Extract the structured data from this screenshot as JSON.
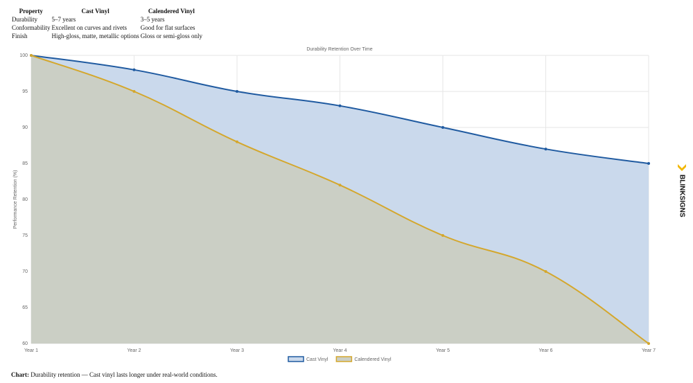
{
  "table": {
    "header": [
      "Property",
      "Cast Vinyl",
      "Calendered Vinyl"
    ],
    "rows": [
      [
        "Durability",
        "5–7 years",
        "3–5 years"
      ],
      [
        "Conformability",
        "Excellent on curves and rivets",
        "Good for flat surfaces"
      ],
      [
        "Finish",
        "High-gloss, matte, metallic options",
        "Gloss or semi-gloss only"
      ]
    ]
  },
  "chart_data": {
    "type": "line",
    "title": "Durability Retention Over Time",
    "y_label": "Performance Retention (%)",
    "categories": [
      "Year 1",
      "Year 2",
      "Year 3",
      "Year 4",
      "Year 5",
      "Year 6",
      "Year 7"
    ],
    "series": [
      {
        "name": "Cast Vinyl",
        "color": "#1f5aa0",
        "fill": "#cad9ec",
        "values": [
          100,
          98,
          95,
          93,
          90,
          87,
          85
        ]
      },
      {
        "name": "Calendered Vinyl",
        "color": "#d4a72c",
        "fill": "#cbcfc5",
        "values": [
          100,
          95,
          88,
          82,
          75,
          70,
          60
        ]
      }
    ],
    "ylim": [
      60,
      100
    ],
    "yticks": [
      60,
      65,
      70,
      75,
      80,
      85,
      90,
      95,
      100
    ],
    "grid": true,
    "legend": "bottom"
  },
  "caption": {
    "label": "Chart:",
    "text": " Durability retention — Cast vinyl lasts longer under real-world conditions."
  },
  "brand": "BLINKSIGNS"
}
